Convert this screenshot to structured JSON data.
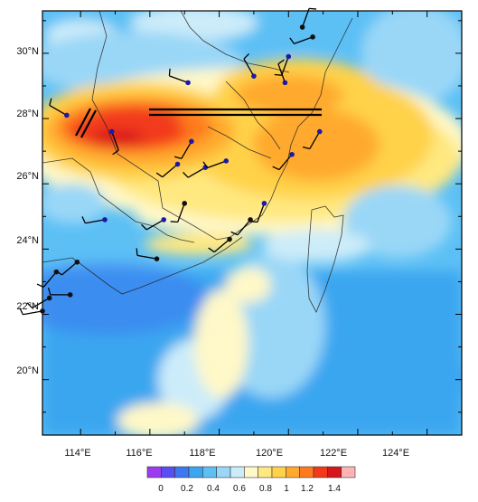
{
  "map": {
    "lon_ticks": [
      "114°E",
      "116°E",
      "118°E",
      "120°E",
      "122°E",
      "124°E"
    ],
    "lat_ticks": [
      "30°N",
      "28°N",
      "26°N",
      "24°N",
      "22°N",
      "20°N"
    ],
    "colorbar": {
      "labels": [
        "0",
        "0.2",
        "0.4",
        "0.6",
        "0.8",
        "1",
        "1.2",
        "1.4"
      ],
      "colors": [
        "#9b3cf0",
        "#5a4ef2",
        "#3d78f0",
        "#3aa6f0",
        "#5cc0f5",
        "#9ad7f7",
        "#ccecf9",
        "#fff8c8",
        "#ffe880",
        "#ffd24a",
        "#ffaa2e",
        "#ff7a1e",
        "#f23a1a",
        "#d6171c",
        "#ffb3b3"
      ]
    },
    "stations": [
      {
        "lon": 113.6,
        "lat": 28.1,
        "barb_dir": 300,
        "color": "#1a1aa8"
      },
      {
        "lon": 114.9,
        "lat": 27.6,
        "barb_dir": 160,
        "color": "#1a1aa8"
      },
      {
        "lon": 117.1,
        "lat": 29.1,
        "barb_dir": 290,
        "color": "#1a1aa8"
      },
      {
        "lon": 119.0,
        "lat": 29.3,
        "barb_dir": 330,
        "color": "#1a1aa8"
      },
      {
        "lon": 119.9,
        "lat": 29.1,
        "barb_dir": 340,
        "color": "#1a1aa8"
      },
      {
        "lon": 120.4,
        "lat": 30.8,
        "barb_dir": 20,
        "color": "#111111"
      },
      {
        "lon": 120.7,
        "lat": 30.5,
        "barb_dir": 250,
        "color": "#111111"
      },
      {
        "lon": 120.0,
        "lat": 29.9,
        "barb_dir": 200,
        "color": "#1a1aa8"
      },
      {
        "lon": 117.2,
        "lat": 27.3,
        "barb_dir": 210,
        "color": "#1a1aa8"
      },
      {
        "lon": 116.8,
        "lat": 26.6,
        "barb_dir": 230,
        "color": "#1a1aa8"
      },
      {
        "lon": 117.6,
        "lat": 26.5,
        "barb_dir": 240,
        "color": "#1a1aa8"
      },
      {
        "lon": 118.2,
        "lat": 26.7,
        "barb_dir": 250,
        "color": "#1a1aa8"
      },
      {
        "lon": 120.1,
        "lat": 26.9,
        "barb_dir": 220,
        "color": "#1a1aa8"
      },
      {
        "lon": 120.9,
        "lat": 27.6,
        "barb_dir": 210,
        "color": "#1a1aa8"
      },
      {
        "lon": 116.4,
        "lat": 24.9,
        "barb_dir": 240,
        "color": "#1a1aa8"
      },
      {
        "lon": 117.0,
        "lat": 25.4,
        "barb_dir": 200,
        "color": "#111111"
      },
      {
        "lon": 114.7,
        "lat": 24.9,
        "barb_dir": 260,
        "color": "#1a1aa8"
      },
      {
        "lon": 119.3,
        "lat": 25.4,
        "barb_dir": 200,
        "color": "#1a1aa8"
      },
      {
        "lon": 118.9,
        "lat": 24.9,
        "barb_dir": 220,
        "color": "#111111"
      },
      {
        "lon": 118.3,
        "lat": 24.3,
        "barb_dir": 230,
        "color": "#111111"
      },
      {
        "lon": 116.2,
        "lat": 23.7,
        "barb_dir": 280,
        "color": "#111111"
      },
      {
        "lon": 113.9,
        "lat": 23.6,
        "barb_dir": 230,
        "color": "#111111"
      },
      {
        "lon": 113.3,
        "lat": 23.3,
        "barb_dir": 220,
        "color": "#111111"
      },
      {
        "lon": 113.1,
        "lat": 22.5,
        "barb_dir": 240,
        "color": "#111111"
      },
      {
        "lon": 113.7,
        "lat": 22.6,
        "barb_dir": 270,
        "color": "#111111"
      },
      {
        "lon": 112.9,
        "lat": 22.1,
        "barb_dir": 260,
        "color": "#111111"
      }
    ]
  }
}
